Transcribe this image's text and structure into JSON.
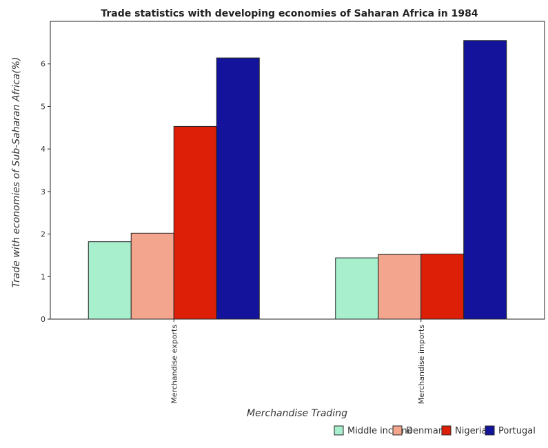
{
  "chart_data": {
    "type": "bar",
    "title": "Trade statistics with developing economies of Saharan Africa in 1984",
    "xlabel": "Merchandise Trading",
    "ylabel": "Trade with economies of Sub-Saharan Africa(%)",
    "categories": [
      "Merchandise exports",
      "Merchandise imports"
    ],
    "ylim": [
      0,
      7
    ],
    "yticks": [
      "0",
      "1",
      "2",
      "3",
      "4",
      "5",
      "6"
    ],
    "grid": false,
    "legend_position": "bottom-right",
    "series": [
      {
        "name": "Middle income",
        "color": "#a8efce",
        "values": [
          1.82,
          1.44
        ]
      },
      {
        "name": "Denmark",
        "color": "#f4a58e",
        "values": [
          2.02,
          1.52
        ]
      },
      {
        "name": "Nigeria",
        "color": "#dd1f08",
        "values": [
          4.53,
          1.53
        ]
      },
      {
        "name": "Portugal",
        "color": "#13149b",
        "values": [
          6.14,
          6.55
        ]
      }
    ]
  }
}
